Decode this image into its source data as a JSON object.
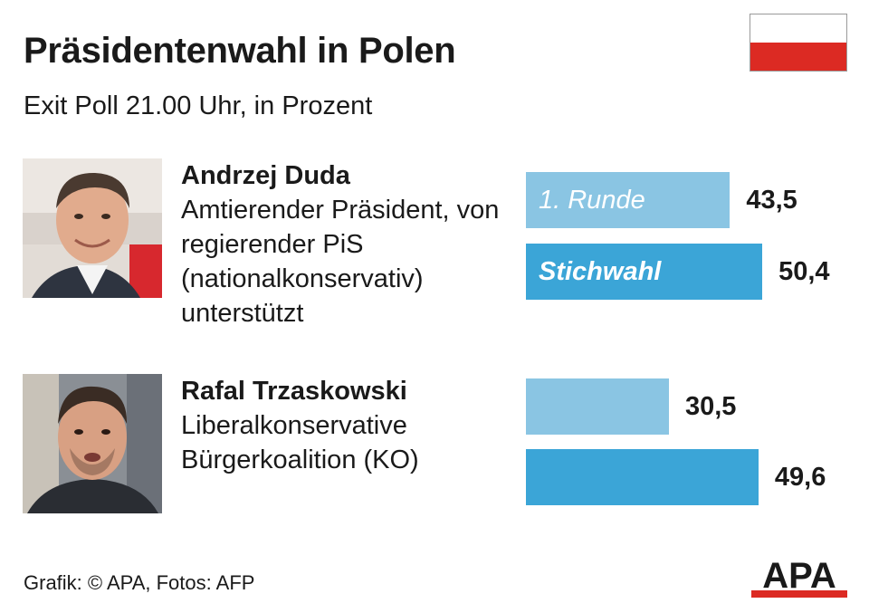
{
  "header": {
    "title": "Präsidentenwahl in Polen",
    "subtitle": "Exit Poll 21.00 Uhr, in Prozent"
  },
  "flag": {
    "top_color": "#ffffff",
    "bottom_color": "#dc2a23"
  },
  "candidates": [
    {
      "name": "Andrzej Duda",
      "description": "Amtierender Präsident, von regierender PiS (nationalkonservativ) unterstützt",
      "photo_icon": "candidate-photo-duda"
    },
    {
      "name": "Rafal Trzaskowski",
      "description": "Liberalkonservative Bürgerkoalition (KO)",
      "photo_icon": "candidate-photo-trzaskowski"
    }
  ],
  "chart_data": {
    "type": "bar",
    "orientation": "horizontal",
    "categories": [
      "Andrzej Duda",
      "Rafal Trzaskowski"
    ],
    "series": [
      {
        "name": "1. Runde",
        "values": [
          43.5,
          30.5
        ],
        "labels": [
          "43,5",
          "30,5"
        ],
        "color": "#8ac5e3"
      },
      {
        "name": "Stichwahl",
        "values": [
          50.4,
          49.6
        ],
        "labels": [
          "50,4",
          "49,6"
        ],
        "color": "#3ba5d7"
      }
    ],
    "unit": "Prozent"
  },
  "footer": {
    "credit": "Grafik: © APA, Fotos: AFP"
  },
  "logo": {
    "text": "APA",
    "accent_color": "#dc2a23"
  }
}
